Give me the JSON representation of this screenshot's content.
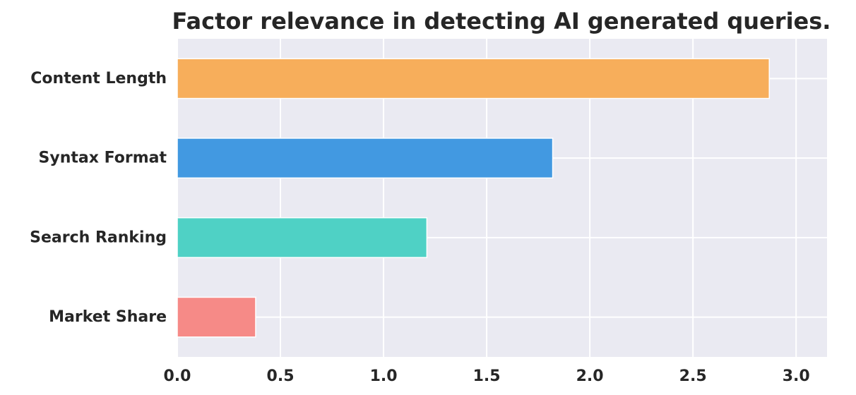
{
  "chart_data": {
    "type": "bar",
    "orientation": "horizontal",
    "title": "Factor relevance in detecting AI generated queries.",
    "xlabel": "",
    "ylabel": "",
    "categories": [
      "Content Length",
      "Syntax Format",
      "Search Ranking",
      "Market Share"
    ],
    "values": [
      2.87,
      1.82,
      1.21,
      0.38
    ],
    "colors": [
      "#f7ae5b",
      "#4299e1",
      "#4fd1c5",
      "#f68a87"
    ],
    "xlim": [
      0,
      3.15
    ],
    "xticks": [
      "0.0",
      "0.5",
      "1.0",
      "1.5",
      "2.0",
      "2.5",
      "3.0"
    ],
    "grid": true,
    "plot_background": "#eaeaf2",
    "grid_color": "#ffffff"
  }
}
